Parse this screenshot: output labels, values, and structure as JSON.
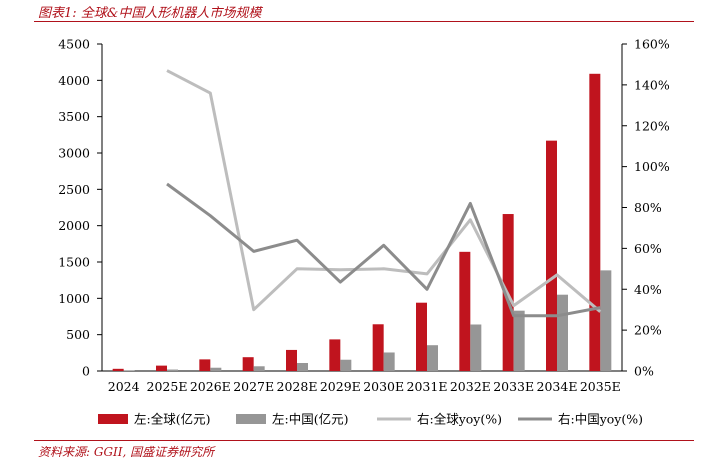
{
  "header": {
    "title": "图表1:  全球&中国人形机器人市场规模"
  },
  "footer": {
    "source": "资料来源:  GGII, 国盛证券研究所"
  },
  "chart_data": {
    "type": "bar",
    "title": "图表1:  全球&中国人形机器人市场规模",
    "categories": [
      "2024",
      "2025E",
      "2026E",
      "2027E",
      "2028E",
      "2029E",
      "2030E",
      "2031E",
      "2032E",
      "2033E",
      "2034E",
      "2035E"
    ],
    "y_left": {
      "ylim": [
        0,
        4500
      ],
      "ticks": [
        "0",
        "500",
        "1000",
        "1500",
        "2000",
        "2500",
        "3000",
        "3500",
        "4000",
        "4500"
      ]
    },
    "y_right": {
      "ylim": [
        0,
        160
      ],
      "ticks": [
        "0%",
        "20%",
        "40%",
        "60%",
        "80%",
        "100%",
        "120%",
        "140%",
        "160%"
      ]
    },
    "series": [
      {
        "name": "左:全球(亿元)",
        "kind": "bar",
        "axis": "left",
        "color": "#c0141e",
        "values": [
          30,
          74,
          160,
          190,
          290,
          435,
          643,
          940,
          1640,
          2160,
          3170,
          4090
        ]
      },
      {
        "name": "左:中国(亿元)",
        "kind": "bar",
        "axis": "left",
        "color": "#969696",
        "values": [
          5,
          20,
          45,
          65,
          110,
          155,
          255,
          355,
          640,
          830,
          1050,
          1385
        ]
      },
      {
        "name": "右:全球yoy(%)",
        "kind": "line",
        "axis": "right",
        "color": "#bdbdbd",
        "values": [
          null,
          147,
          136,
          30,
          50,
          49.5,
          50,
          47.5,
          74,
          32,
          47,
          29
        ]
      },
      {
        "name": "右:中国yoy(%)",
        "kind": "line",
        "axis": "right",
        "color": "#8c8c8c",
        "values": [
          null,
          91.5,
          76,
          58.5,
          64,
          43.5,
          61.5,
          40,
          82,
          27,
          27,
          31
        ]
      }
    ],
    "legend_position": "bottom",
    "grid": false
  }
}
